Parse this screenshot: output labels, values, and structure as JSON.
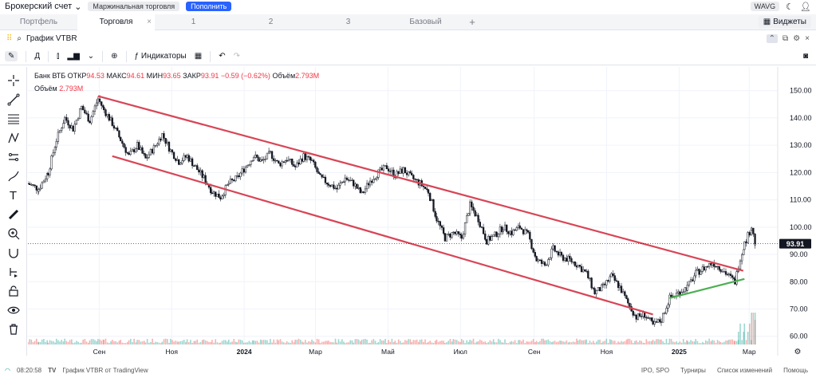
{
  "topbar": {
    "account": "Брокерский счет",
    "margin_label": "Маржинальная торговля",
    "topup_label": "Пополнить",
    "ticker_chip": "WAVG"
  },
  "tabs": [
    {
      "label": "Портфель",
      "active": false
    },
    {
      "label": "Торговля",
      "active": true
    },
    {
      "label": "1",
      "active": false
    },
    {
      "label": "2",
      "active": false
    },
    {
      "label": "3",
      "active": false
    },
    {
      "label": "Базовый",
      "active": false
    }
  ],
  "widgets_label": "Виджеты",
  "chart_header": {
    "title": "График VTBR"
  },
  "toolbar": {
    "interval": "Д",
    "indicators": "Индикаторы"
  },
  "legend": {
    "name": "Банк ВТБ",
    "open_label": "ОТКР",
    "open": "94.53",
    "high_label": "МАКС",
    "high": "94.61",
    "low_label": "МИН",
    "low": "93.65",
    "close_label": "ЗАКР",
    "close": "93.91",
    "change": "−0.59 (−0.62%)",
    "volume_label": "Объём",
    "volume": "2.793M"
  },
  "price_badge": "93.91",
  "bottombar": {
    "time": "08:20:58",
    "source": "График VTBR от TradingView",
    "ipo": "IPO, SPO",
    "tournaments": "Турниры",
    "changelog": "Список изменений",
    "help": "Помощь"
  },
  "colors": {
    "up": "#26a69a",
    "down": "#ef5350",
    "channel": "#d84556",
    "support": "#4caf50",
    "accent": "#2962ff"
  },
  "chart_data": {
    "type": "candlestick",
    "title": "",
    "y_ticks": [
      60,
      70,
      80,
      90,
      100,
      110,
      120,
      130,
      140,
      150
    ],
    "ylim": [
      57,
      154
    ],
    "x_labels": [
      "Сен",
      "Ноя",
      "2024",
      "Мар",
      "Май",
      "Июл",
      "Сен",
      "Ноя",
      "2025",
      "Мар"
    ],
    "x_label_dates": [
      "2023-09-01",
      "2023-11-01",
      "2024-01-01",
      "2024-03-01",
      "2024-05-01",
      "2024-07-01",
      "2024-09-01",
      "2024-11-01",
      "2025-01-01",
      "2025-03-01"
    ],
    "x_range": [
      "2023-07-03",
      "2025-03-25"
    ],
    "close_path": [
      [
        "2023-07-03",
        116
      ],
      [
        "2023-07-12",
        114
      ],
      [
        "2023-07-20",
        120
      ],
      [
        "2023-07-27",
        132
      ],
      [
        "2023-08-03",
        140
      ],
      [
        "2023-08-10",
        136
      ],
      [
        "2023-08-17",
        144
      ],
      [
        "2023-08-24",
        139
      ],
      [
        "2023-08-31",
        147
      ],
      [
        "2023-09-05",
        143
      ],
      [
        "2023-09-12",
        138
      ],
      [
        "2023-09-19",
        132
      ],
      [
        "2023-09-26",
        126
      ],
      [
        "2023-10-03",
        130
      ],
      [
        "2023-10-10",
        125
      ],
      [
        "2023-10-17",
        129
      ],
      [
        "2023-10-24",
        134
      ],
      [
        "2023-10-31",
        128
      ],
      [
        "2023-11-07",
        124
      ],
      [
        "2023-11-14",
        126
      ],
      [
        "2023-11-21",
        122
      ],
      [
        "2023-11-28",
        118
      ],
      [
        "2023-12-05",
        113
      ],
      [
        "2023-12-12",
        111
      ],
      [
        "2023-12-19",
        116
      ],
      [
        "2023-12-26",
        118
      ],
      [
        "2024-01-09",
        126
      ],
      [
        "2024-01-16",
        124
      ],
      [
        "2024-01-23",
        127
      ],
      [
        "2024-01-30",
        123
      ],
      [
        "2024-02-06",
        125
      ],
      [
        "2024-02-13",
        122
      ],
      [
        "2024-02-20",
        126
      ],
      [
        "2024-02-27",
        124
      ],
      [
        "2024-03-05",
        118
      ],
      [
        "2024-03-12",
        116
      ],
      [
        "2024-03-19",
        114
      ],
      [
        "2024-03-26",
        118
      ],
      [
        "2024-04-02",
        116
      ],
      [
        "2024-04-09",
        112
      ],
      [
        "2024-04-16",
        117
      ],
      [
        "2024-04-23",
        120
      ],
      [
        "2024-04-30",
        122
      ],
      [
        "2024-05-07",
        119
      ],
      [
        "2024-05-14",
        121
      ],
      [
        "2024-05-21",
        118
      ],
      [
        "2024-05-28",
        116
      ],
      [
        "2024-06-04",
        113
      ],
      [
        "2024-06-11",
        103
      ],
      [
        "2024-06-18",
        96
      ],
      [
        "2024-06-25",
        98
      ],
      [
        "2024-07-02",
        96
      ],
      [
        "2024-07-09",
        108
      ],
      [
        "2024-07-16",
        103
      ],
      [
        "2024-07-23",
        95
      ],
      [
        "2024-07-30",
        97
      ],
      [
        "2024-08-06",
        100
      ],
      [
        "2024-08-13",
        98
      ],
      [
        "2024-08-20",
        100
      ],
      [
        "2024-08-27",
        97
      ],
      [
        "2024-09-03",
        88
      ],
      [
        "2024-09-10",
        86
      ],
      [
        "2024-09-17",
        92
      ],
      [
        "2024-09-24",
        89
      ],
      [
        "2024-10-01",
        88
      ],
      [
        "2024-10-08",
        86
      ],
      [
        "2024-10-15",
        83
      ],
      [
        "2024-10-22",
        76
      ],
      [
        "2024-10-29",
        78
      ],
      [
        "2024-11-05",
        82
      ],
      [
        "2024-11-12",
        78
      ],
      [
        "2024-11-19",
        72
      ],
      [
        "2024-11-26",
        67
      ],
      [
        "2024-12-03",
        68
      ],
      [
        "2024-12-10",
        64
      ],
      [
        "2024-12-17",
        66
      ],
      [
        "2024-12-24",
        74
      ],
      [
        "2025-01-08",
        78
      ],
      [
        "2025-01-15",
        83
      ],
      [
        "2025-01-22",
        85
      ],
      [
        "2025-01-29",
        87
      ],
      [
        "2025-02-05",
        85
      ],
      [
        "2025-02-12",
        82
      ],
      [
        "2025-02-17",
        80
      ],
      [
        "2025-02-20",
        86
      ],
      [
        "2025-02-25",
        94
      ],
      [
        "2025-03-03",
        100
      ],
      [
        "2025-03-06",
        93.91
      ]
    ],
    "upper_channel": [
      [
        "2023-08-31",
        148
      ],
      [
        "2025-02-24",
        84
      ]
    ],
    "lower_channel": [
      [
        "2023-09-12",
        126
      ],
      [
        "2024-12-10",
        68
      ]
    ],
    "support_line": [
      [
        "2024-12-24",
        74
      ],
      [
        "2025-02-25",
        81
      ]
    ],
    "last_price": 93.91
  }
}
